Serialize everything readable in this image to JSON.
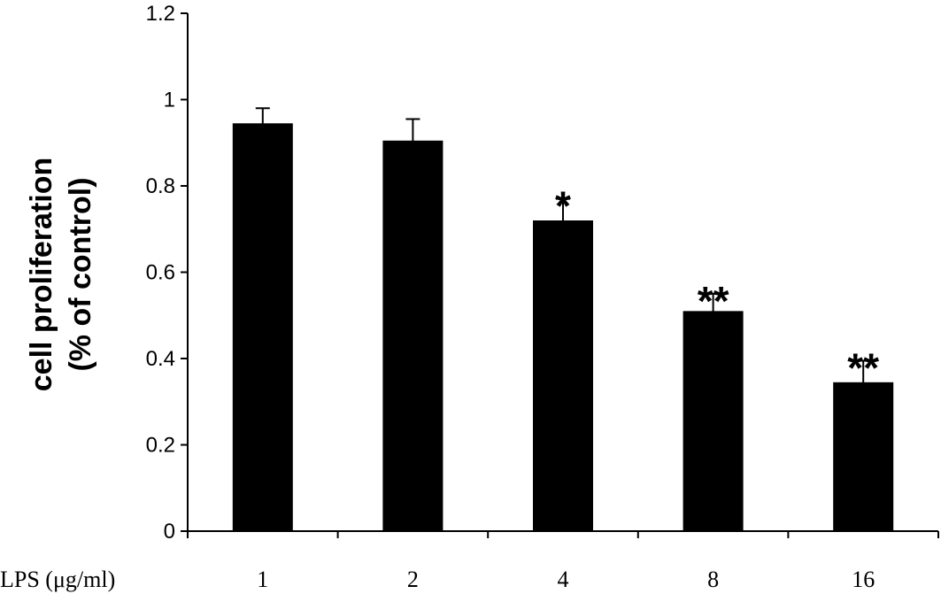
{
  "chart_data": {
    "type": "bar",
    "title": "",
    "xlabel": "LPS (μg/ml)",
    "ylabel": [
      "cell proliferation",
      "(% of control)"
    ],
    "categories": [
      "1",
      "2",
      "4",
      "8",
      "16"
    ],
    "values": [
      0.945,
      0.905,
      0.72,
      0.51,
      0.345
    ],
    "errors": [
      0.035,
      0.05,
      0.05,
      0.04,
      0.05
    ],
    "significance": [
      "",
      "",
      "*",
      "**",
      "**"
    ],
    "ylim": [
      0,
      1.2
    ],
    "yticks": [
      "0",
      "0.2",
      "0.4",
      "0.6",
      "0.8",
      "1",
      "1.2"
    ],
    "bar_color": "#000000",
    "grid": false,
    "legend": "none"
  }
}
